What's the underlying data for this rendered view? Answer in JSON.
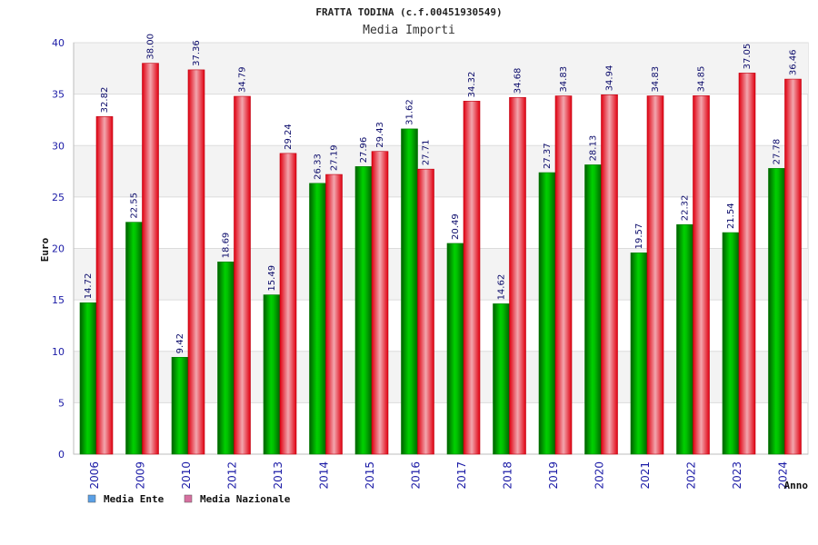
{
  "chart_data": {
    "type": "bar",
    "title": "FRATTA TODINA (c.f.00451930549)",
    "subtitle": "Media Importi",
    "ylabel": "Euro",
    "xlabel": "Anno",
    "ylim": [
      0,
      40
    ],
    "yticks": [
      0,
      5,
      10,
      15,
      20,
      25,
      30,
      35,
      40
    ],
    "grid": true,
    "legend_position": "bottom-left",
    "categories": [
      "2006",
      "2009",
      "2010",
      "2012",
      "2013",
      "2014",
      "2015",
      "2016",
      "2017",
      "2018",
      "2019",
      "2020",
      "2021",
      "2022",
      "2023",
      "2024"
    ],
    "series": [
      {
        "name": "Media Ente",
        "color": "#00b000",
        "legend_color": "#5aa0e6",
        "values": [
          14.72,
          22.55,
          9.42,
          18.69,
          15.49,
          26.33,
          27.96,
          31.62,
          20.49,
          14.62,
          27.37,
          28.13,
          19.57,
          22.32,
          21.54,
          27.78
        ],
        "labels": [
          "14.72",
          "22.55",
          "9.42",
          "18.69",
          "15.49",
          "26.33",
          "27.96",
          "31.62",
          "20.49",
          "14.62",
          "27.37",
          "28.13",
          "19.57",
          "22.32",
          "21.54",
          "27.78"
        ]
      },
      {
        "name": "Media Nazionale",
        "color": "#e01020",
        "legend_color": "#d670a0",
        "values": [
          32.82,
          38.0,
          37.36,
          34.79,
          29.24,
          27.19,
          29.43,
          27.71,
          34.32,
          34.68,
          34.83,
          34.94,
          34.83,
          34.85,
          37.05,
          36.46
        ],
        "labels": [
          "32.82",
          "38.00",
          "37.36",
          "34.79",
          "29.24",
          "27.19",
          "29.43",
          "27.71",
          "34.32",
          "34.68",
          "34.83",
          "34.94",
          "34.83",
          "34.85",
          "37.05",
          "36.46"
        ]
      }
    ]
  }
}
